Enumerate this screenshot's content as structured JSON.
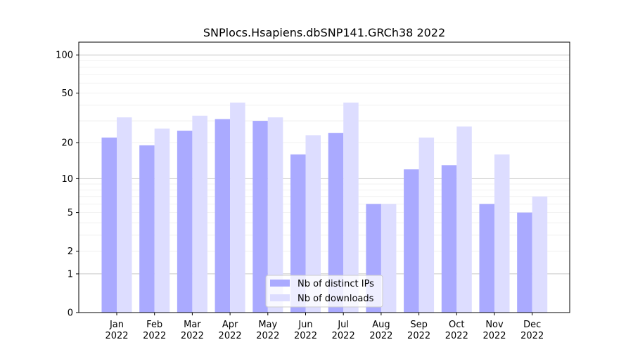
{
  "chart_data": {
    "type": "bar",
    "title": "SNPlocs.Hsapiens.dbSNP141.GRCh38 2022",
    "xlabel": "",
    "ylabel": "",
    "yscale": "log(1+x)",
    "ylim": [
      0,
      120
    ],
    "yticks": [
      0,
      1,
      2,
      5,
      10,
      20,
      50,
      100
    ],
    "ytick_labels": [
      "0",
      "1",
      "2",
      "5",
      "10",
      "20",
      "50",
      "100"
    ],
    "categories": [
      "Jan\n2022",
      "Feb\n2022",
      "Mar\n2022",
      "Apr\n2022",
      "May\n2022",
      "Jun\n2022",
      "Jul\n2022",
      "Aug\n2022",
      "Sep\n2022",
      "Oct\n2022",
      "Nov\n2022",
      "Dec\n2022"
    ],
    "month_labels": [
      "Jan",
      "Feb",
      "Mar",
      "Apr",
      "May",
      "Jun",
      "Jul",
      "Aug",
      "Sep",
      "Oct",
      "Nov",
      "Dec"
    ],
    "year_label": "2022",
    "grid": true,
    "legend_position": "bottom-center",
    "series": [
      {
        "name": "Nb of distinct IPs",
        "color": "#aaaaff",
        "values": [
          22,
          19,
          25,
          31,
          30,
          16,
          24,
          6,
          12,
          13,
          6,
          5
        ]
      },
      {
        "name": "Nb of downloads",
        "color": "#ddddff",
        "values": [
          32,
          26,
          33,
          42,
          32,
          23,
          42,
          6,
          22,
          27,
          16,
          7
        ]
      }
    ]
  }
}
